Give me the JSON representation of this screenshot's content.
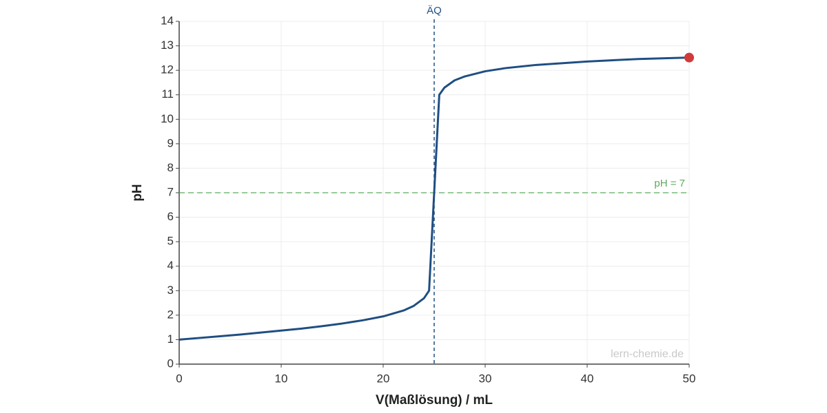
{
  "chart_data": {
    "type": "line",
    "xlabel": "V(Maßlösung) / mL",
    "ylabel": "pH",
    "x": [
      0,
      2,
      4,
      6,
      8,
      10,
      12,
      14,
      16,
      18,
      20,
      22,
      23,
      24,
      24.5,
      25,
      25.5,
      26,
      27,
      28,
      30,
      32,
      35,
      40,
      45,
      50
    ],
    "series": [
      {
        "color": "#1f4e82",
        "values": [
          1.0,
          1.07,
          1.14,
          1.21,
          1.29,
          1.37,
          1.45,
          1.55,
          1.66,
          1.79,
          1.95,
          2.19,
          2.38,
          2.69,
          3.0,
          7.0,
          11.0,
          11.29,
          11.59,
          11.75,
          11.96,
          12.09,
          12.22,
          12.36,
          12.46,
          12.52
        ]
      }
    ],
    "end_marker_color": "#d03a3a",
    "xlim": [
      0,
      50
    ],
    "xticks": [
      0,
      10,
      20,
      30,
      40,
      50
    ],
    "ylim": [
      0,
      14
    ],
    "yticks": [
      0,
      1,
      2,
      3,
      4,
      5,
      6,
      7,
      8,
      9,
      10,
      11,
      12,
      13,
      14
    ],
    "grid": true,
    "equivalence_line": {
      "x": 25,
      "label": "ÄQ",
      "color": "#1f4e82"
    },
    "reference_line": {
      "y": 7,
      "label": "pH = 7",
      "color": "#5aab5a"
    },
    "watermark": "lern-chemie.de"
  }
}
